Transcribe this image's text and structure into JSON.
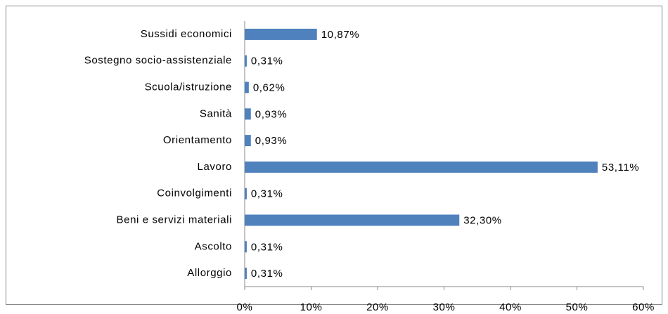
{
  "chart_data": {
    "type": "bar",
    "orientation": "horizontal",
    "categories": [
      "Sussidi economici",
      "Sostegno socio-assistenziale",
      "Scuola/istruzione",
      "Sanità",
      "Orientamento",
      "Lavoro",
      "Coinvolgimenti",
      "Beni e servizi materiali",
      "Ascolto",
      "Allorggio"
    ],
    "values": [
      10.87,
      0.31,
      0.62,
      0.93,
      0.93,
      53.11,
      0.31,
      32.3,
      0.31,
      0.31
    ],
    "value_labels": [
      "10,87%",
      "0,31%",
      "0,62%",
      "0,93%",
      "0,93%",
      "53,11%",
      "0,31%",
      "32,30%",
      "0,31%",
      "0,31%"
    ],
    "color": "#4f81bd",
    "xlim": [
      0,
      60
    ],
    "xticks": [
      {
        "value": 0,
        "label": "0%"
      },
      {
        "value": 10,
        "label": "10%"
      },
      {
        "value": 20,
        "label": "20%"
      },
      {
        "value": 30,
        "label": "30%"
      },
      {
        "value": 40,
        "label": "40%"
      },
      {
        "value": 50,
        "label": "50%"
      },
      {
        "value": 60,
        "label": "60%"
      }
    ],
    "grid": false
  }
}
